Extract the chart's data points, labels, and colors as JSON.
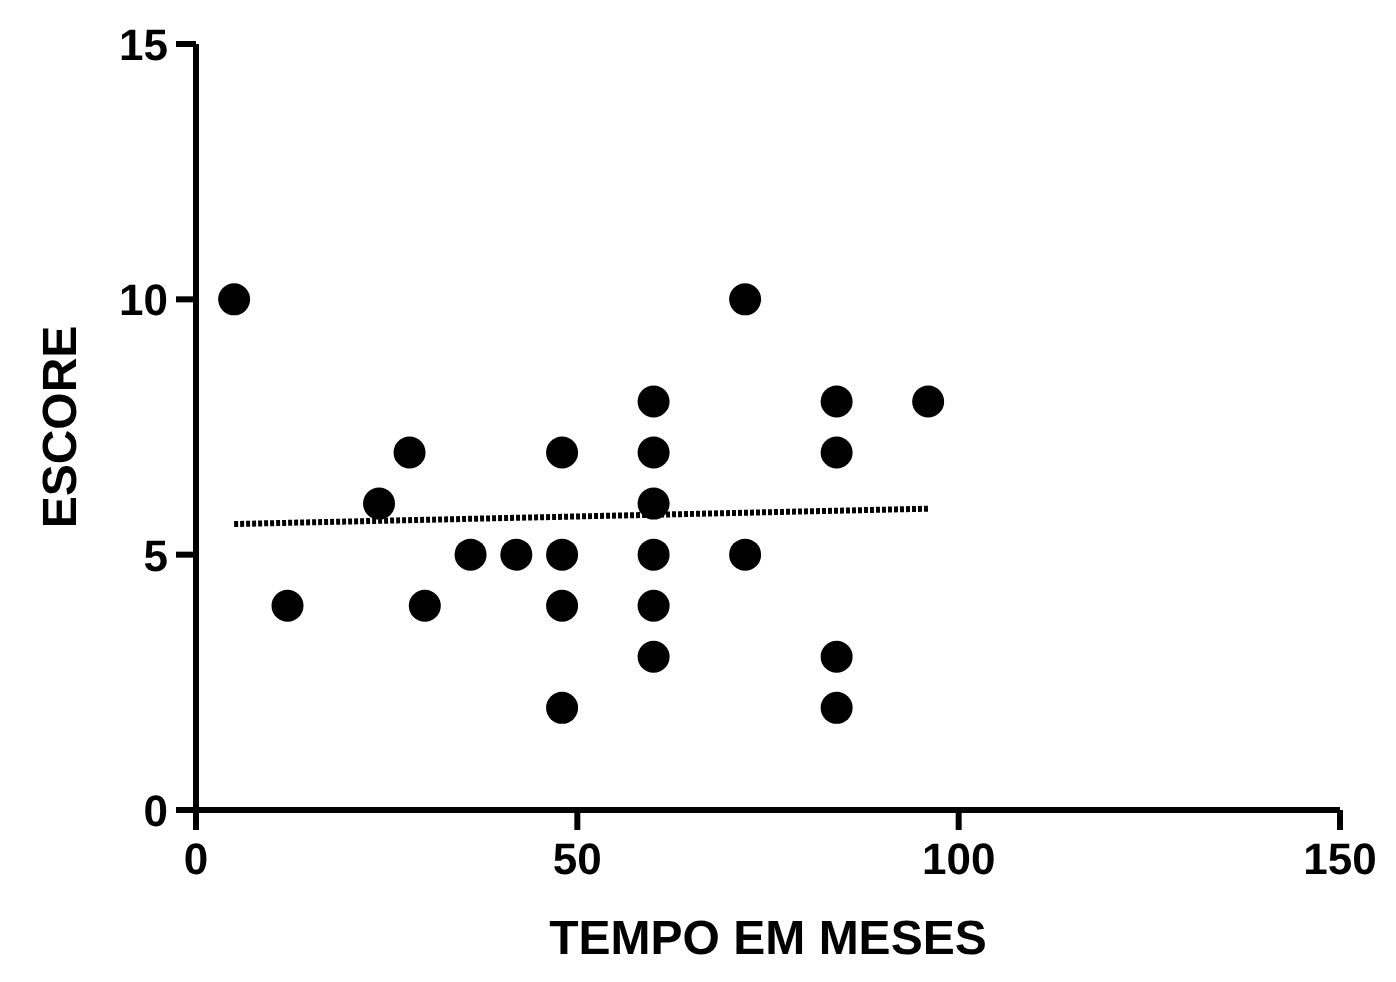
{
  "chart_data": {
    "type": "scatter",
    "xlabel": "TEMPO EM MESES",
    "ylabel": "ESCORE",
    "xlim": [
      0,
      150
    ],
    "xticks": [
      0,
      50,
      100,
      150
    ],
    "ylim": [
      0,
      15
    ],
    "yticks": [
      0,
      5,
      10,
      15
    ],
    "marker": "circle",
    "grid": false,
    "series": [
      {
        "color": "#000000",
        "x": [
          5,
          12,
          24,
          28,
          30,
          36,
          42,
          48,
          48,
          48,
          48,
          60,
          60,
          60,
          60,
          60,
          60,
          72,
          72,
          84,
          84,
          84,
          84,
          96
        ],
        "values": [
          10,
          4,
          6,
          7,
          4,
          5,
          5,
          7,
          5,
          4,
          2,
          8,
          7,
          6,
          5,
          4,
          3,
          10,
          5,
          8,
          7,
          3,
          2,
          8
        ]
      },
      {
        "type": "line",
        "color": "#000000",
        "x": [
          5,
          96
        ],
        "values": [
          5.6,
          5.9
        ],
        "marker": "none",
        "line_style": "dotted"
      }
    ]
  }
}
